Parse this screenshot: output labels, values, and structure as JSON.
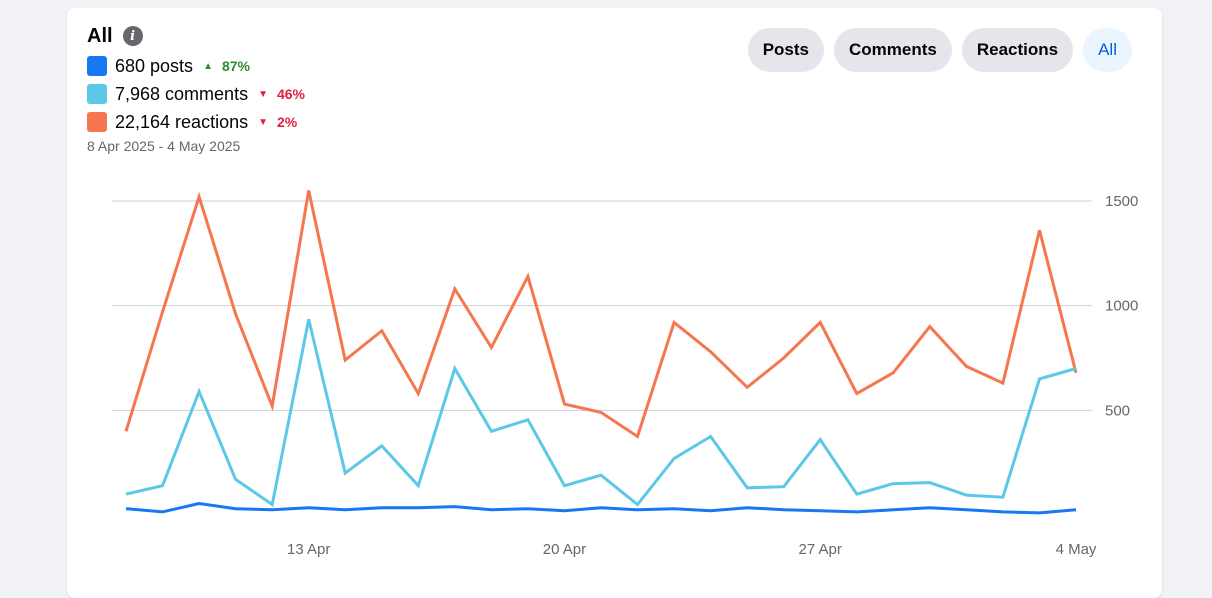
{
  "header": {
    "title": "All",
    "info_icon": "info-icon",
    "date_range": "8 Apr 2025 - 4 May 2025"
  },
  "legend": [
    {
      "label": "680 posts",
      "color": "#1877f2",
      "delta": "87%",
      "direction": "up"
    },
    {
      "label": "7,968 comments",
      "color": "#5bc8e8",
      "delta": "46%",
      "direction": "down"
    },
    {
      "label": "22,164 reactions",
      "color": "#f5764f",
      "delta": "2%",
      "direction": "down"
    }
  ],
  "filters": [
    {
      "label": "Posts",
      "active": false
    },
    {
      "label": "Comments",
      "active": false
    },
    {
      "label": "Reactions",
      "active": false
    },
    {
      "label": "All",
      "active": true
    }
  ],
  "chart_data": {
    "type": "line",
    "x": [
      "8 Apr",
      "9 Apr",
      "10 Apr",
      "11 Apr",
      "12 Apr",
      "13 Apr",
      "14 Apr",
      "15 Apr",
      "16 Apr",
      "17 Apr",
      "18 Apr",
      "19 Apr",
      "20 Apr",
      "21 Apr",
      "22 Apr",
      "23 Apr",
      "24 Apr",
      "25 Apr",
      "26 Apr",
      "27 Apr",
      "28 Apr",
      "29 Apr",
      "30 Apr",
      "1 May",
      "2 May",
      "3 May",
      "4 May"
    ],
    "x_ticks": [
      "13 Apr",
      "20 Apr",
      "27 Apr",
      "4 May"
    ],
    "y_ticks": [
      500,
      1000,
      1500
    ],
    "ylim": [
      0,
      1500
    ],
    "grid": true,
    "series": [
      {
        "name": "posts",
        "color": "#1877f2",
        "values": [
          30,
          15,
          55,
          30,
          25,
          35,
          25,
          35,
          35,
          40,
          25,
          30,
          20,
          35,
          25,
          30,
          20,
          35,
          25,
          20,
          15,
          25,
          35,
          25,
          15,
          10,
          25
        ]
      },
      {
        "name": "comments",
        "color": "#5bc8e8",
        "values": [
          100,
          140,
          590,
          170,
          50,
          935,
          200,
          330,
          140,
          700,
          400,
          455,
          140,
          190,
          50,
          270,
          375,
          130,
          135,
          360,
          100,
          150,
          155,
          95,
          85,
          650,
          700
        ]
      },
      {
        "name": "reactions",
        "color": "#f5764f",
        "values": [
          400,
          970,
          1520,
          960,
          520,
          1550,
          740,
          880,
          580,
          1080,
          800,
          1140,
          530,
          490,
          375,
          920,
          780,
          610,
          750,
          920,
          580,
          680,
          900,
          710,
          630,
          1360,
          680
        ]
      }
    ]
  }
}
